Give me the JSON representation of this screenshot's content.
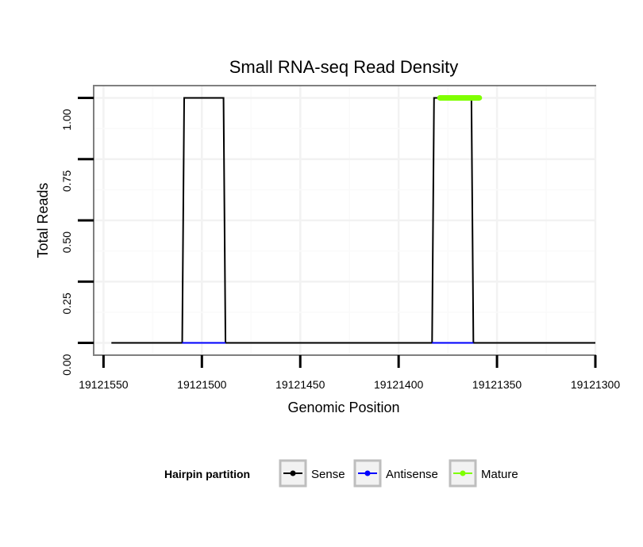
{
  "chart_data": {
    "type": "line",
    "title": "Small RNA-seq Read Density",
    "xlabel": "Genomic Position",
    "ylabel": "Total Reads",
    "x_reversed": true,
    "xlim": [
      19121555,
      19121300
    ],
    "ylim": [
      -0.05,
      1.05
    ],
    "x_ticks": [
      19121550,
      19121500,
      19121450,
      19121400,
      19121350,
      19121300
    ],
    "x_tick_labels": [
      "19121550",
      "19121500",
      "19121450",
      "19121400",
      "19121350",
      "19121300"
    ],
    "y_ticks": [
      0,
      0.25,
      0.5,
      0.75,
      1.0
    ],
    "y_tick_labels": [
      "0.00",
      "0.25",
      "0.50",
      "0.75",
      "1.00"
    ],
    "grid": true,
    "legend": {
      "title": "Hairpin partition",
      "position": "bottom",
      "entries": [
        "Sense",
        "Antisense",
        "Mature"
      ]
    },
    "series": [
      {
        "name": "Sense",
        "color": "#000000",
        "x": [
          19121546,
          19121510,
          19121509,
          19121489,
          19121488,
          19121383,
          19121382,
          19121363,
          19121362,
          19121300
        ],
        "y": [
          0,
          0,
          1,
          1,
          0,
          0,
          1,
          1,
          0,
          0
        ]
      },
      {
        "name": "Antisense",
        "color": "#0000ff",
        "x": [
          19121510,
          19121488,
          19121383,
          19121362
        ],
        "y": [
          0,
          0,
          0,
          0
        ],
        "segments": [
          [
            0,
            1
          ],
          [
            2,
            3
          ]
        ]
      },
      {
        "name": "Mature",
        "color": "#7fff00",
        "x": [
          19121379,
          19121359
        ],
        "y": [
          1,
          1
        ]
      }
    ]
  }
}
